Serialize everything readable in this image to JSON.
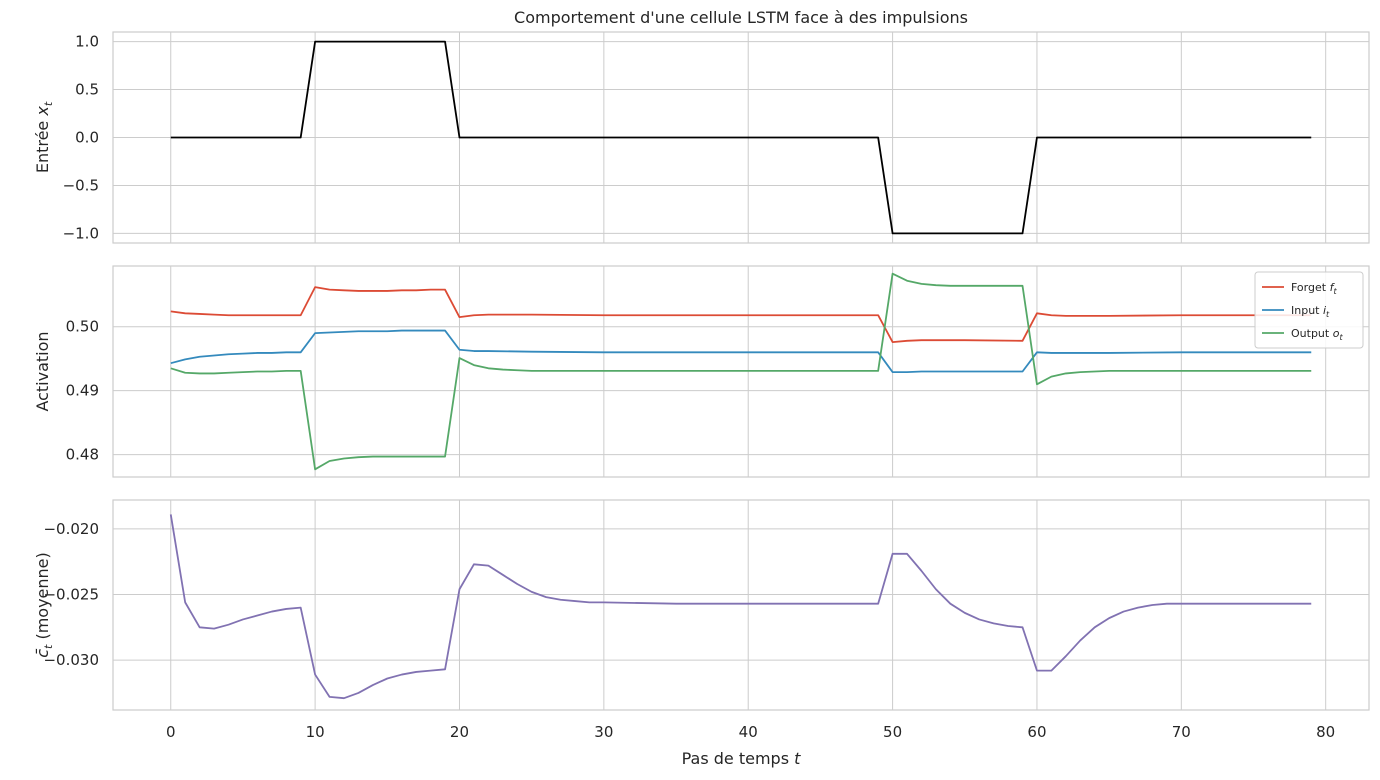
{
  "chart_data": [
    {
      "type": "line",
      "title": "Comportement d'une cellule LSTM face à des impulsions",
      "ylabel": "Entrée x_t",
      "ylabel_main": "Entrée ",
      "ylabel_var": "x",
      "ylabel_sub": "t",
      "xlim": [
        -4,
        83
      ],
      "ylim": [
        -1.1,
        1.1
      ],
      "yticks": [
        1.0,
        0.5,
        0.0,
        -0.5,
        -1.0
      ],
      "ytick_labels": [
        "1.0",
        "0.5",
        "0.0",
        "−0.5",
        "−1.0"
      ],
      "xticks": [
        0,
        10,
        20,
        30,
        40,
        50,
        60,
        70,
        80
      ],
      "grid": true,
      "series": [
        {
          "color": "#000000",
          "x": [
            0,
            9,
            10,
            19,
            20,
            49,
            50,
            59,
            60,
            79
          ],
          "y": [
            0,
            0,
            1,
            1,
            0,
            0,
            -1,
            -1,
            0,
            0
          ]
        }
      ]
    },
    {
      "type": "line",
      "ylabel": "Activation",
      "xlim": [
        -4,
        83
      ],
      "ylim": [
        0.4765,
        0.5095
      ],
      "yticks": [
        0.5,
        0.49,
        0.48
      ],
      "ytick_labels": [
        "0.50",
        "0.49",
        "0.48"
      ],
      "xticks": [
        0,
        10,
        20,
        30,
        40,
        50,
        60,
        70,
        80
      ],
      "grid": true,
      "legend": "top-right",
      "series": [
        {
          "name": "Forget f_t",
          "legend_main": "Forget ",
          "legend_var": "f",
          "legend_sub": "t",
          "color": "#dc4b35",
          "x": [
            0,
            1,
            2,
            3,
            4,
            5,
            6,
            7,
            8,
            9,
            10,
            11,
            12,
            13,
            14,
            15,
            16,
            17,
            18,
            19,
            20,
            21,
            22,
            23,
            25,
            30,
            49,
            50,
            51,
            52,
            53,
            55,
            59,
            60,
            61,
            62,
            63,
            65,
            70,
            79
          ],
          "y": [
            0.5024,
            0.5021,
            0.502,
            0.5019,
            0.5018,
            0.5018,
            0.5018,
            0.5018,
            0.5018,
            0.5018,
            0.5062,
            0.5058,
            0.5057,
            0.5056,
            0.5056,
            0.5056,
            0.5057,
            0.5057,
            0.5058,
            0.5058,
            0.5015,
            0.5018,
            0.5019,
            0.5019,
            0.5019,
            0.5018,
            0.5018,
            0.4976,
            0.4978,
            0.4979,
            0.4979,
            0.4979,
            0.4978,
            0.5021,
            0.5018,
            0.5017,
            0.5017,
            0.5017,
            0.5018,
            0.5018
          ]
        },
        {
          "name": "Input i_t",
          "legend_main": "Input ",
          "legend_var": "i",
          "legend_sub": "t",
          "color": "#348abd",
          "x": [
            0,
            1,
            2,
            3,
            4,
            5,
            6,
            7,
            8,
            9,
            10,
            11,
            12,
            13,
            14,
            15,
            16,
            17,
            18,
            19,
            20,
            21,
            22,
            25,
            30,
            49,
            50,
            51,
            52,
            55,
            59,
            60,
            61,
            62,
            65,
            70,
            79
          ],
          "y": [
            0.4943,
            0.4949,
            0.4953,
            0.4955,
            0.4957,
            0.4958,
            0.4959,
            0.4959,
            0.496,
            0.496,
            0.499,
            0.4991,
            0.4992,
            0.4993,
            0.4993,
            0.4993,
            0.4994,
            0.4994,
            0.4994,
            0.4994,
            0.4964,
            0.4962,
            0.4962,
            0.4961,
            0.496,
            0.496,
            0.4929,
            0.4929,
            0.493,
            0.493,
            0.493,
            0.496,
            0.4959,
            0.4959,
            0.4959,
            0.496,
            0.496
          ]
        },
        {
          "name": "Output o_t",
          "legend_main": "Output ",
          "legend_var": "o",
          "legend_sub": "t",
          "color": "#55a868",
          "x": [
            0,
            1,
            2,
            3,
            4,
            5,
            6,
            7,
            8,
            9,
            10,
            11,
            12,
            13,
            14,
            15,
            16,
            17,
            18,
            19,
            20,
            21,
            22,
            23,
            24,
            25,
            30,
            49,
            50,
            51,
            52,
            53,
            54,
            55,
            59,
            60,
            61,
            62,
            63,
            64,
            65,
            70,
            79
          ],
          "y": [
            0.4935,
            0.4928,
            0.4927,
            0.4927,
            0.4928,
            0.4929,
            0.493,
            0.493,
            0.4931,
            0.4931,
            0.4777,
            0.479,
            0.4794,
            0.4796,
            0.4797,
            0.4797,
            0.4797,
            0.4797,
            0.4797,
            0.4797,
            0.4951,
            0.494,
            0.4935,
            0.4933,
            0.4932,
            0.4931,
            0.4931,
            0.4931,
            0.5083,
            0.5072,
            0.5067,
            0.5065,
            0.5064,
            0.5064,
            0.5064,
            0.491,
            0.4922,
            0.4927,
            0.4929,
            0.493,
            0.4931,
            0.4931,
            0.4931
          ]
        }
      ]
    },
    {
      "type": "line",
      "ylabel": "c̄_t (moyenne)",
      "ylabel_var": "c̄",
      "ylabel_sub": "t",
      "ylabel_main": " (moyenne)",
      "xlabel": "Pas de temps t",
      "xlabel_main": "Pas de temps ",
      "xlabel_var": "t",
      "xlim": [
        -4,
        83
      ],
      "ylim": [
        -0.0338,
        -0.0178
      ],
      "yticks": [
        -0.02,
        -0.025,
        -0.03
      ],
      "ytick_labels": [
        "−0.020",
        "−0.025",
        "−0.030"
      ],
      "xticks": [
        0,
        10,
        20,
        30,
        40,
        50,
        60,
        70,
        80
      ],
      "xtick_labels": [
        "0",
        "10",
        "20",
        "30",
        "40",
        "50",
        "60",
        "70",
        "80"
      ],
      "grid": true,
      "series": [
        {
          "color": "#8172b2",
          "x": [
            0,
            1,
            2,
            3,
            4,
            5,
            6,
            7,
            8,
            9,
            10,
            11,
            12,
            13,
            14,
            15,
            16,
            17,
            18,
            19,
            20,
            21,
            22,
            23,
            24,
            25,
            26,
            27,
            28,
            29,
            30,
            35,
            40,
            49,
            50,
            51,
            52,
            53,
            54,
            55,
            56,
            57,
            58,
            59,
            60,
            61,
            62,
            63,
            64,
            65,
            66,
            67,
            68,
            69,
            70,
            75,
            79
          ],
          "y": [
            -0.0189,
            -0.0256,
            -0.0275,
            -0.0276,
            -0.0273,
            -0.0269,
            -0.0266,
            -0.0263,
            -0.0261,
            -0.026,
            -0.0311,
            -0.0328,
            -0.0329,
            -0.0325,
            -0.0319,
            -0.0314,
            -0.0311,
            -0.0309,
            -0.0308,
            -0.0307,
            -0.0246,
            -0.0227,
            -0.0228,
            -0.0235,
            -0.0242,
            -0.0248,
            -0.0252,
            -0.0254,
            -0.0255,
            -0.0256,
            -0.0256,
            -0.0257,
            -0.0257,
            -0.0257,
            -0.0219,
            -0.0219,
            -0.0232,
            -0.0246,
            -0.0257,
            -0.0264,
            -0.0269,
            -0.0272,
            -0.0274,
            -0.0275,
            -0.0308,
            -0.0308,
            -0.0297,
            -0.0285,
            -0.0275,
            -0.0268,
            -0.0263,
            -0.026,
            -0.0258,
            -0.0257,
            -0.0257,
            -0.0257,
            -0.0257
          ]
        }
      ]
    }
  ]
}
